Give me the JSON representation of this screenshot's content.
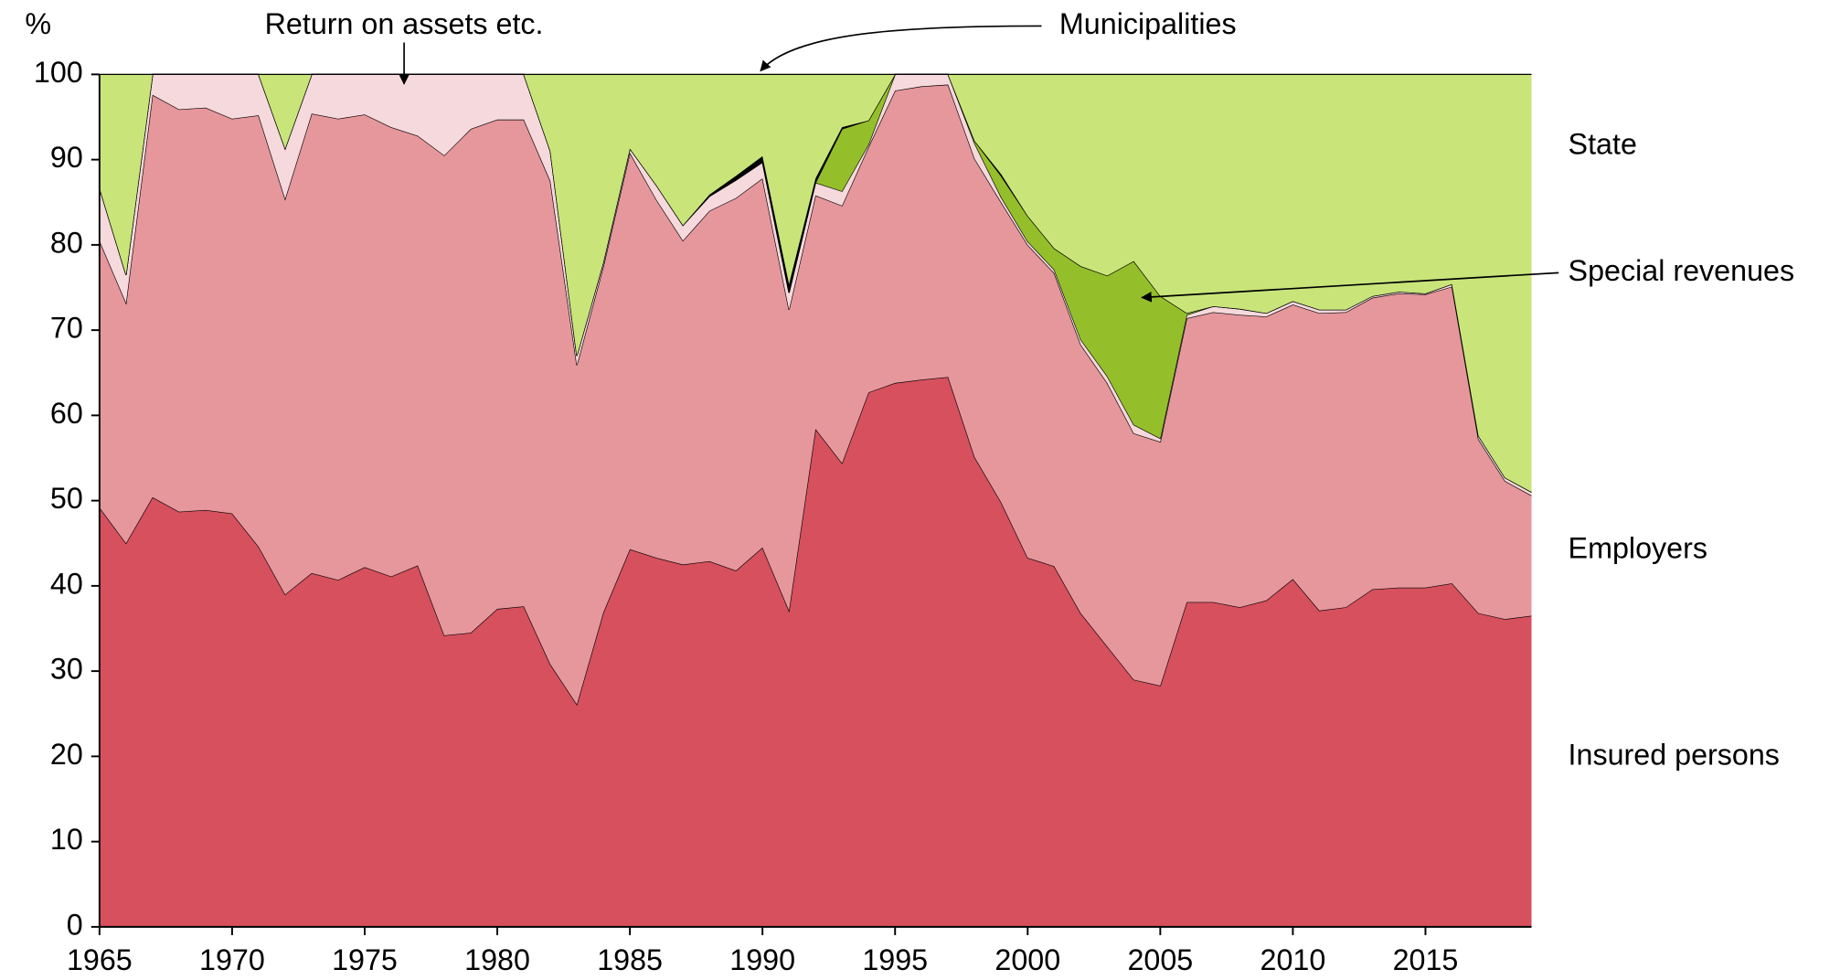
{
  "chart_data": {
    "type": "stacked_area",
    "y_label": "%",
    "x": [
      1965,
      1966,
      1967,
      1968,
      1969,
      1970,
      1971,
      1972,
      1973,
      1974,
      1975,
      1976,
      1977,
      1978,
      1979,
      1980,
      1981,
      1982,
      1983,
      1984,
      1985,
      1986,
      1987,
      1988,
      1989,
      1990,
      1991,
      1992,
      1993,
      1994,
      1995,
      1996,
      1997,
      1998,
      1999,
      2000,
      2001,
      2002,
      2003,
      2004,
      2005,
      2006,
      2007,
      2008,
      2009,
      2010,
      2011,
      2012,
      2013,
      2014,
      2015,
      2016,
      2017,
      2018,
      2019
    ],
    "xlim": [
      1965,
      2019
    ],
    "xticks": [
      1965,
      1970,
      1975,
      1980,
      1985,
      1990,
      1995,
      2000,
      2005,
      2010,
      2015
    ],
    "ylim": [
      0,
      100
    ],
    "yticks": [
      0,
      10,
      20,
      30,
      40,
      50,
      60,
      70,
      80,
      90,
      100
    ],
    "grid": false,
    "series": [
      {
        "name": "Insured persons",
        "color": "#d6505d",
        "values": [
          49.2,
          45,
          50.4,
          48.7,
          48.9,
          48.5,
          44.6,
          39,
          41.5,
          40.7,
          42.2,
          41.1,
          42.4,
          34.2,
          34.5,
          37.3,
          37.6,
          30.8,
          26.1,
          36.9,
          44.3,
          43.3,
          42.5,
          42.9,
          41.8,
          44.5,
          37.1,
          58.4,
          54.4,
          62.7,
          63.8,
          64.2,
          64.5,
          55.1,
          49.8,
          43.3,
          42.3,
          36.8,
          32.9,
          29,
          28.3,
          38.1,
          38.1,
          37.5,
          38.3,
          40.8,
          37.1,
          37.5,
          39.6,
          39.8,
          39.8,
          40.3,
          36.8,
          36.1,
          36.5
        ]
      },
      {
        "name": "Employers",
        "color": "#e6979c",
        "values": [
          31.3,
          28.2,
          47.2,
          47.2,
          47.2,
          46.3,
          50.6,
          46.4,
          53.9,
          54.1,
          53.1,
          52.7,
          50.4,
          56.3,
          59.1,
          57.4,
          57.1,
          56.7,
          39.8,
          40.6,
          46.5,
          42,
          38,
          41.1,
          43.7,
          43.3,
          35.3,
          27.4,
          30.2,
          28.8,
          34.3,
          34.4,
          34.3,
          35,
          35.2,
          36.7,
          34.4,
          31.5,
          30.9,
          28.9,
          28.6,
          33.3,
          34,
          34.3,
          33.3,
          32.2,
          34.9,
          34.6,
          34.2,
          34.5,
          34.4,
          34.8,
          20.4,
          16.2,
          14.1
        ]
      },
      {
        "name": "Return on assets etc.",
        "color": "#f5d9dc",
        "values": [
          6.2,
          3.3,
          2.4,
          4.1,
          3.9,
          5.2,
          4.8,
          5.9,
          4.6,
          5.2,
          4.7,
          6.2,
          7.2,
          9.5,
          6.4,
          5.3,
          5.3,
          3.5,
          1.1,
          0.5,
          0.5,
          1.7,
          1.8,
          1.7,
          2.1,
          1.9,
          2,
          1.5,
          1.7,
          0.3,
          1.9,
          1.4,
          1.2,
          1.8,
          0.6,
          0.4,
          0.4,
          0.6,
          0.8,
          1,
          0.4,
          0.4,
          0.7,
          0.7,
          0.4,
          0.4,
          0.4,
          0.3,
          0.2,
          0.2,
          0.1,
          0.3,
          0.4,
          0.4,
          0.4
        ]
      },
      {
        "name": "Special revenues",
        "color": "#94bf2a",
        "values": [
          0,
          0,
          0,
          0,
          0,
          0,
          0,
          0,
          0,
          0,
          0,
          0,
          0,
          0,
          0,
          0,
          0,
          0,
          0,
          0,
          0,
          0,
          0,
          0,
          0,
          0,
          0,
          0,
          7.3,
          2.8,
          0,
          0,
          0,
          0.3,
          2.5,
          3,
          2.5,
          8.6,
          11.8,
          19.2,
          16.7,
          0.2,
          0,
          0,
          0,
          0,
          0,
          0,
          0,
          0,
          0,
          0,
          0,
          0,
          0
        ]
      },
      {
        "name": "Municipalities",
        "color": "#000000",
        "values": [
          0,
          0,
          0,
          0,
          0,
          0,
          0,
          0,
          0,
          0,
          0,
          0,
          0,
          0,
          0,
          0,
          0,
          0,
          0,
          0,
          0,
          0,
          0,
          0.2,
          0.5,
          0.7,
          1,
          0.5,
          0.2,
          0,
          0,
          0,
          0,
          0,
          0.2,
          0,
          0,
          0,
          0,
          0,
          0,
          0,
          0,
          0,
          0,
          0,
          0,
          0,
          0,
          0,
          0,
          0,
          0,
          0,
          0
        ]
      },
      {
        "name": "State",
        "color": "#c9e57a",
        "values": [
          13.3,
          23.5,
          0,
          0,
          0,
          0,
          0,
          8.7,
          0,
          0,
          0,
          0,
          0,
          0,
          0,
          0,
          0,
          9,
          33,
          22,
          8.7,
          13,
          17.7,
          14.1,
          11.9,
          9.6,
          24.6,
          12.2,
          6.2,
          5.4,
          0,
          0,
          0,
          7.8,
          11.7,
          16.6,
          20.4,
          22.5,
          23.6,
          21.9,
          26,
          28,
          27.2,
          27.5,
          28,
          26.6,
          27.6,
          27.6,
          26,
          25.5,
          25.7,
          24.6,
          42.4,
          47.3,
          49
        ]
      }
    ]
  }
}
